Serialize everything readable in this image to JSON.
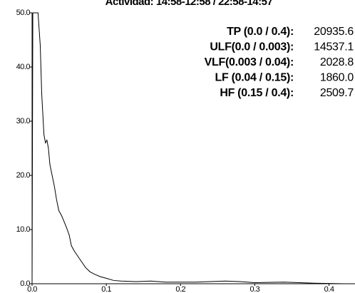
{
  "chart_data": {
    "type": "line",
    "title": "Actividad: 14:58-12:58 / 22:58-14:57",
    "annotations": [
      {
        "label": "TP (0.0 / 0.4):",
        "value": "20935.6"
      },
      {
        "label": "ULF(0.0 / 0.003):",
        "value": "14537.1"
      },
      {
        "label": "VLF(0.003 / 0.04):",
        "value": "2028.8"
      },
      {
        "label": "LF (0.04 / 0.15):",
        "value": "1860.0"
      },
      {
        "label": "HF (0.15 / 0.4):",
        "value": "2509.7"
      }
    ],
    "x": [
      0.0,
      0.001,
      0.008,
      0.011,
      0.013,
      0.016,
      0.018,
      0.02,
      0.022,
      0.024,
      0.027,
      0.03,
      0.033,
      0.036,
      0.04,
      0.043,
      0.046,
      0.05,
      0.053,
      0.057,
      0.062,
      0.067,
      0.072,
      0.078,
      0.085,
      0.092,
      0.1,
      0.11,
      0.12,
      0.14,
      0.16,
      0.18,
      0.22,
      0.26,
      0.28,
      0.3,
      0.34,
      0.38,
      0.42,
      0.435
    ],
    "series": [
      {
        "color": "#000000",
        "values": [
          0,
          50,
          50,
          44,
          35,
          27.5,
          26,
          26.5,
          25,
          22,
          20,
          18,
          15.5,
          13.5,
          12.5,
          11.5,
          10.5,
          9,
          7,
          6,
          5,
          4,
          3,
          2.2,
          1.7,
          1.3,
          1,
          0.6,
          0.5,
          0.4,
          0.5,
          0.3,
          0.3,
          0.5,
          0.4,
          0.2,
          0.3,
          0.1,
          0,
          0
        ]
      }
    ],
    "xlim": [
      0,
      0.435
    ],
    "ylim": [
      0,
      50
    ],
    "xticks": [
      {
        "value": 0,
        "label": "0.0"
      },
      0.1,
      0.2,
      0.3,
      0.4
    ],
    "yticks": [
      {
        "value": 0,
        "label": "0.0"
      },
      {
        "value": 10,
        "label": "10.0"
      },
      {
        "value": 20,
        "label": "20.0"
      },
      {
        "value": 30,
        "label": "30.0"
      },
      {
        "value": 40,
        "label": "40.0"
      },
      {
        "value": 50,
        "label": "50.0"
      }
    ],
    "grid": false
  }
}
